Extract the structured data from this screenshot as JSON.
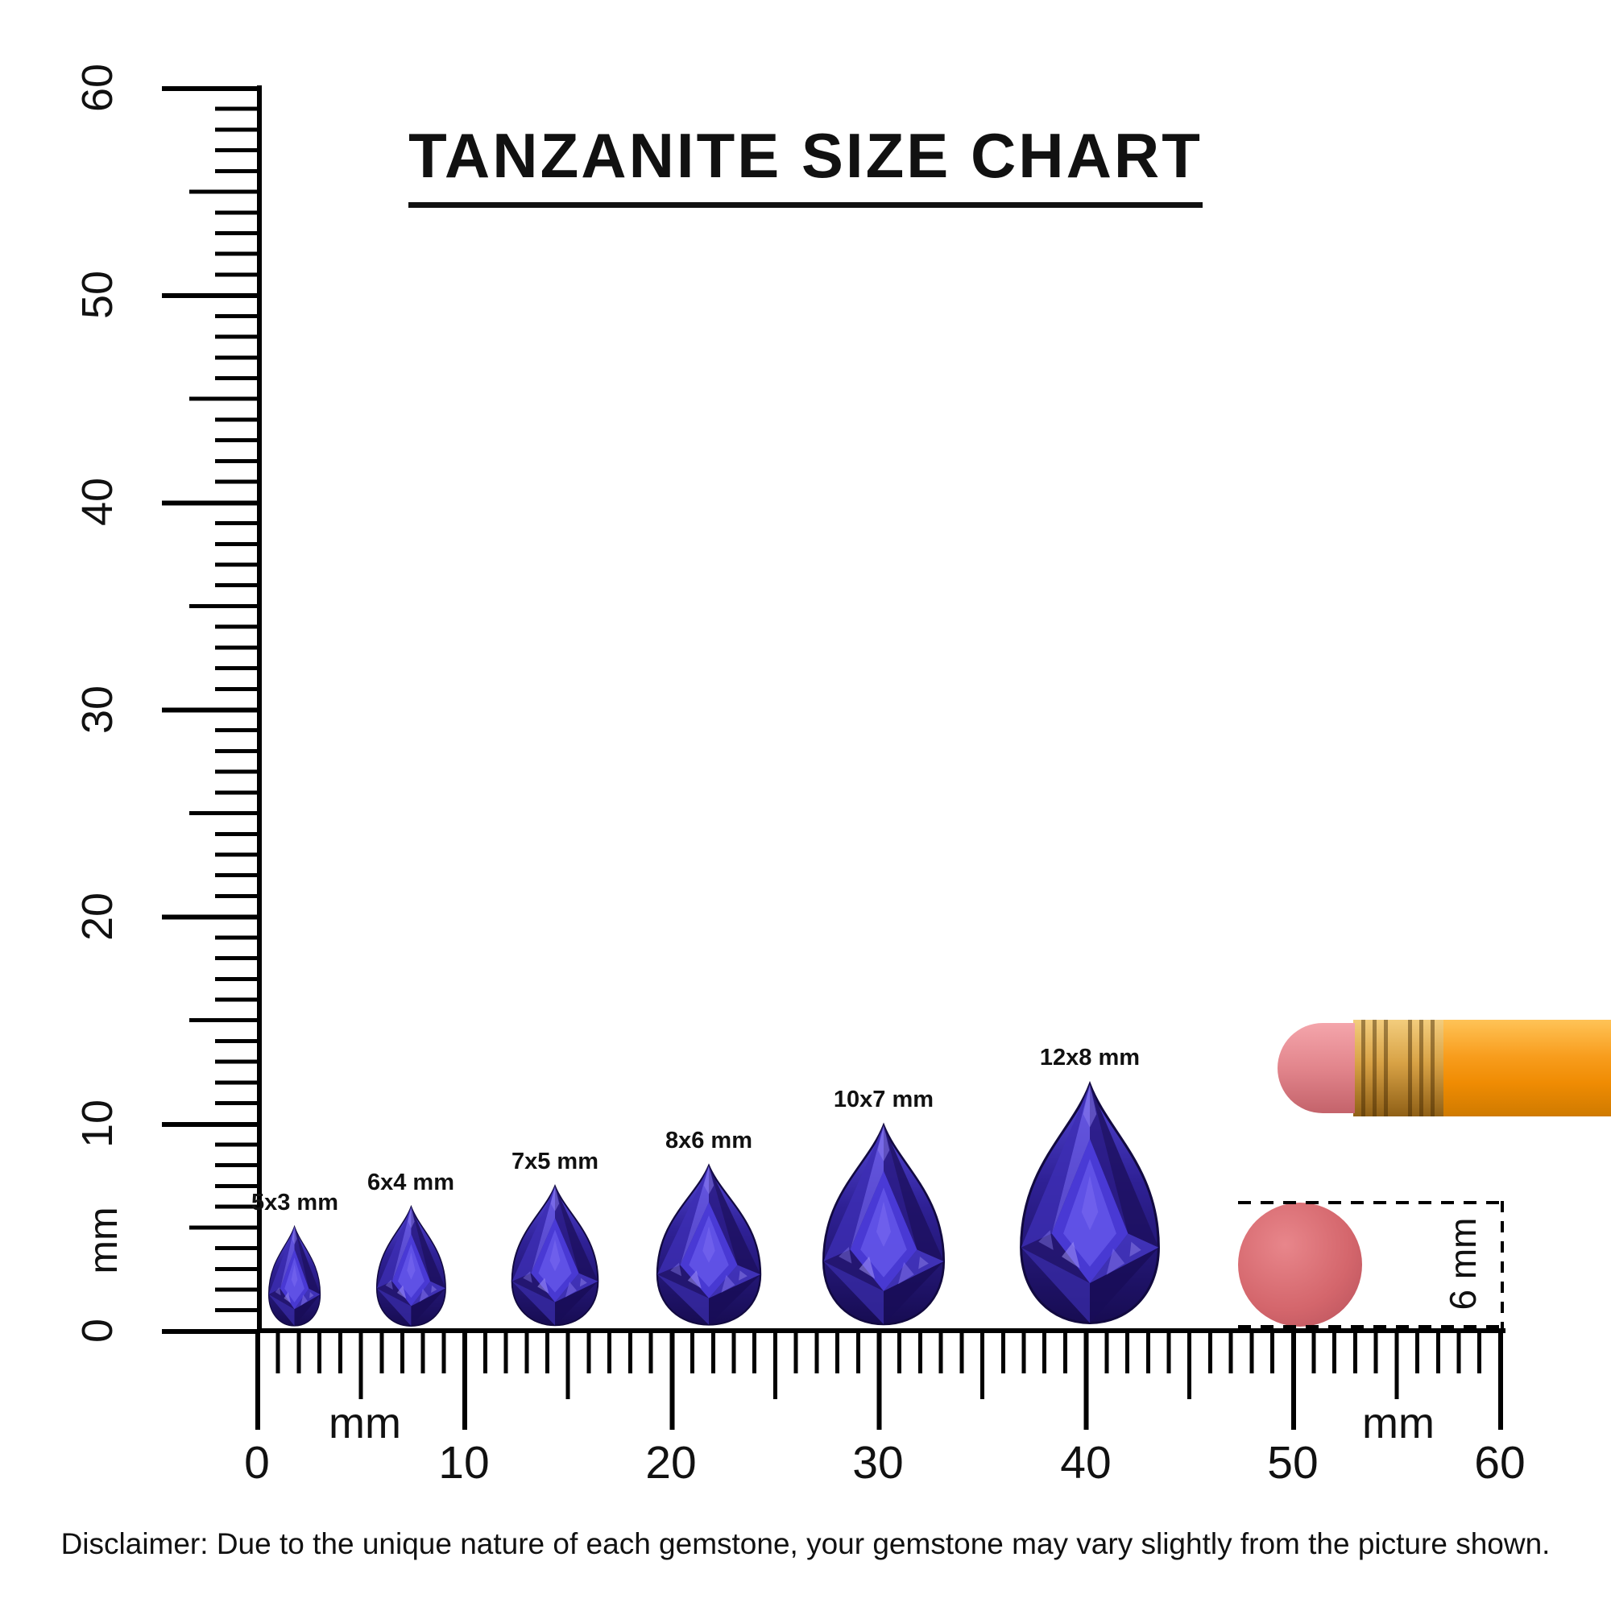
{
  "title": "TANZANITE SIZE CHART",
  "vertical_ruler": {
    "unit": "mm",
    "labels": [
      "60",
      "50",
      "40",
      "30",
      "20",
      "10",
      "0"
    ]
  },
  "horizontal_ruler": {
    "unit_left": "mm",
    "unit_right": "mm",
    "labels": [
      "0",
      "10",
      "20",
      "30",
      "40",
      "50",
      "60"
    ]
  },
  "gems": [
    {
      "label": "5x3 mm",
      "length_mm": 5,
      "width_mm": 3,
      "shape": "pear"
    },
    {
      "label": "6x4 mm",
      "length_mm": 6,
      "width_mm": 4,
      "shape": "pear"
    },
    {
      "label": "7x5 mm",
      "length_mm": 7,
      "width_mm": 5,
      "shape": "pear"
    },
    {
      "label": "8x6 mm",
      "length_mm": 8,
      "width_mm": 6,
      "shape": "pear"
    },
    {
      "label": "10x7 mm",
      "length_mm": 10,
      "width_mm": 7,
      "shape": "pear"
    },
    {
      "label": "12x8 mm",
      "length_mm": 12,
      "width_mm": 8,
      "shape": "pear"
    }
  ],
  "reference_objects": {
    "pencil_icon": "pencil-with-eraser-icon",
    "disc_icon": "round-eraser-icon",
    "disc_diameter_label": "6 mm"
  },
  "disclaimer": "Disclaimer: Due to the unique nature of each gemstone, your gemstone may vary slightly from the picture shown.",
  "colors": {
    "ink": "#111111",
    "gem_primary": "#2f2196",
    "gem_dark": "#170c52",
    "gem_light": "#8a7df2",
    "pencil_body": "#f89d1d",
    "pencil_ferrule": "#d8a245",
    "pencil_eraser": "#e2858c",
    "disc": "#d4666c"
  }
}
